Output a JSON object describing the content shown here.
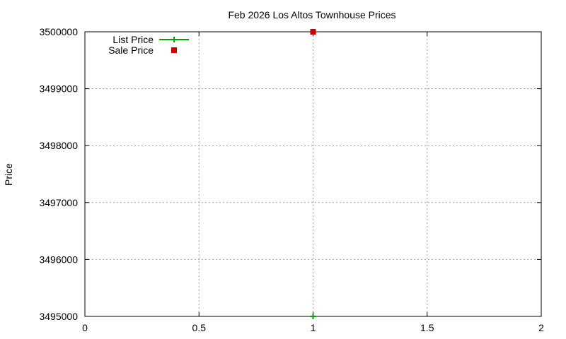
{
  "chart_data": {
    "type": "line",
    "title": "Feb 2026 Los Altos Townhouse Prices",
    "xlabel": "",
    "ylabel": "Price",
    "xlim": [
      0,
      2
    ],
    "ylim": [
      3495000,
      3500000
    ],
    "x_ticks": [
      "0",
      "0.5",
      "1",
      "1.5",
      "2"
    ],
    "y_ticks": [
      "3495000",
      "3496000",
      "3497000",
      "3498000",
      "3499000",
      "3500000"
    ],
    "grid": true,
    "legend_position": "top-left",
    "series": [
      {
        "name": "List Price",
        "x": [
          1
        ],
        "y": [
          3495000
        ],
        "color": "#00a000",
        "marker": "plus",
        "line": true
      },
      {
        "name": "Sale Price",
        "x": [
          1
        ],
        "y": [
          3500000
        ],
        "color": "#cc0000",
        "marker": "square",
        "line": false
      }
    ]
  }
}
